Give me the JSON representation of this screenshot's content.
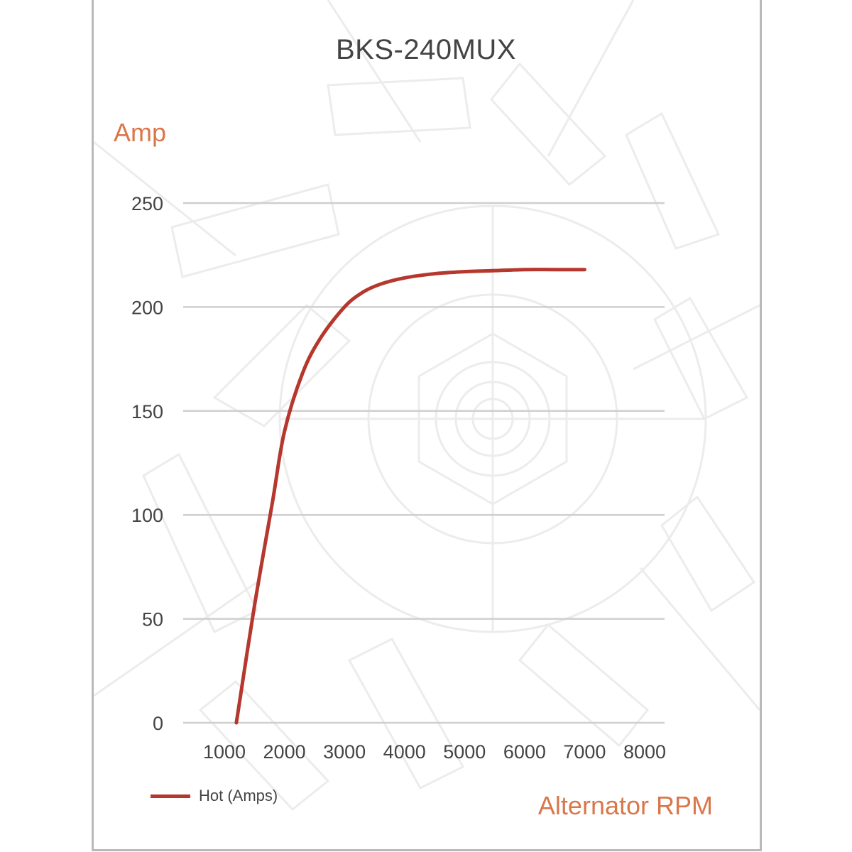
{
  "chart_data": {
    "type": "line",
    "title": "BKS-240MUX",
    "ylabel": "Amp",
    "xlabel": "Alternator RPM",
    "ylim": [
      0,
      250
    ],
    "xlim": [
      1000,
      8000
    ],
    "y_ticks": [
      "0",
      "50",
      "100",
      "150",
      "200",
      "250"
    ],
    "y_tick_values": [
      0,
      50,
      100,
      150,
      200,
      250
    ],
    "x_ticks": [
      "1000",
      "2000",
      "3000",
      "4000",
      "5000",
      "6000",
      "7000",
      "8000"
    ],
    "grid": true,
    "legend_position": "bottom-left",
    "series": [
      {
        "name": "Hot (Amps)",
        "color": "#b5372d",
        "x": [
          1200,
          1500,
          1800,
          2000,
          2300,
          2600,
          3000,
          3300,
          3600,
          4000,
          4500,
          5000,
          5500,
          6000,
          6500,
          7000
        ],
        "y": [
          0,
          56,
          106,
          140,
          168,
          185,
          200,
          207,
          211,
          214,
          216,
          217,
          217.5,
          218,
          218,
          218
        ]
      }
    ]
  },
  "colors": {
    "accent": "#d9774b",
    "series": "#b5372d",
    "grid": "#cfcfcf",
    "text": "#444444",
    "frame": "#b9b9b9"
  }
}
